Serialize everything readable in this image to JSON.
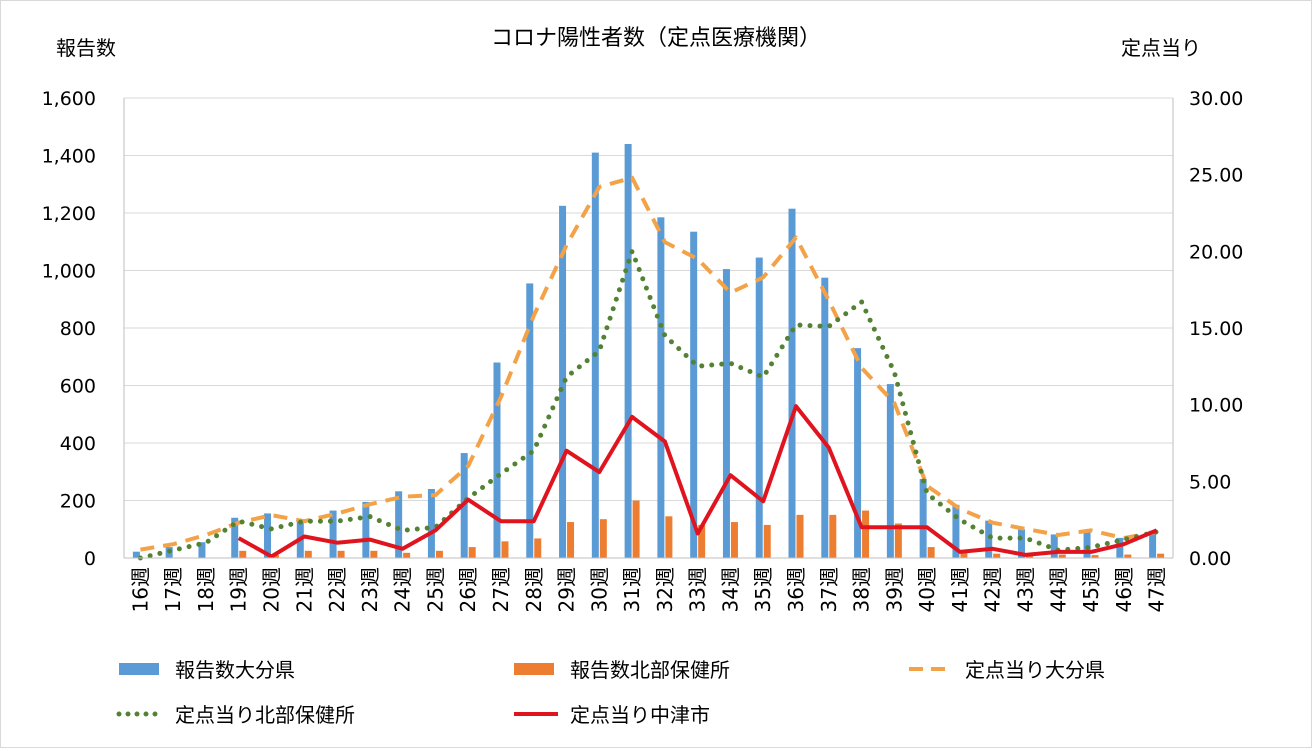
{
  "chart_data": {
    "type": "bar",
    "title": "コロナ陽性者数（定点医療機関）",
    "ylabel": "報告数",
    "y2label": "定点当り",
    "ylim": [
      0,
      1600
    ],
    "y2lim": [
      0,
      30
    ],
    "yticks": [
      "0",
      "200",
      "400",
      "600",
      "800",
      "1,000",
      "1,200",
      "1,400",
      "1,600"
    ],
    "y2ticks": [
      "0.00",
      "5.00",
      "10.00",
      "15.00",
      "20.00",
      "25.00",
      "30.00"
    ],
    "categories": [
      "16週",
      "17週",
      "18週",
      "19週",
      "20週",
      "21週",
      "22週",
      "23週",
      "24週",
      "25週",
      "26週",
      "27週",
      "28週",
      "29週",
      "30週",
      "31週",
      "32週",
      "33週",
      "34週",
      "35週",
      "36週",
      "37週",
      "38週",
      "39週",
      "40週",
      "41週",
      "42週",
      "43週",
      "44週",
      "45週",
      "46週",
      "47週"
    ],
    "grid": true,
    "legend_position": "bottom",
    "series": [
      {
        "name": "報告数大分県",
        "kind": "bar",
        "axis": "left",
        "color": "#5b9bd5",
        "values": [
          22,
          38,
          55,
          140,
          155,
          135,
          165,
          195,
          232,
          240,
          365,
          680,
          955,
          1225,
          1410,
          1440,
          1185,
          1135,
          1005,
          1045,
          1215,
          975,
          730,
          605,
          275,
          185,
          130,
          100,
          82,
          95,
          70,
          95
        ]
      },
      {
        "name": "報告数北部保健所",
        "kind": "bar",
        "axis": "left",
        "color": "#ed7d31",
        "values": [
          0,
          0,
          0,
          25,
          10,
          25,
          25,
          25,
          18,
          25,
          38,
          58,
          68,
          125,
          135,
          200,
          145,
          115,
          125,
          115,
          150,
          150,
          165,
          120,
          38,
          18,
          15,
          10,
          12,
          10,
          12,
          15
        ]
      },
      {
        "name": "定点当り大分県",
        "kind": "line",
        "axis": "right",
        "color": "#f4a248",
        "style": "dashed",
        "values": [
          0.55,
          0.9,
          1.5,
          2.3,
          2.8,
          2.4,
          2.9,
          3.5,
          4.0,
          4.1,
          6.0,
          10.5,
          15.8,
          20.4,
          24.2,
          24.8,
          20.6,
          19.5,
          17.3,
          18.3,
          20.9,
          16.8,
          12.4,
          10.1,
          4.7,
          3.2,
          2.3,
          1.9,
          1.5,
          1.8,
          1.3,
          1.7
        ]
      },
      {
        "name": "定点当り北部保健所",
        "kind": "line",
        "axis": "right",
        "color": "#548235",
        "style": "dotted",
        "values": [
          0.0,
          0.5,
          1.0,
          2.4,
          1.9,
          2.4,
          2.4,
          2.7,
          1.8,
          2.0,
          3.9,
          5.5,
          7.0,
          11.8,
          13.5,
          20.0,
          14.5,
          12.5,
          12.7,
          11.8,
          15.2,
          15.1,
          16.7,
          12.1,
          4.2,
          2.5,
          1.3,
          1.3,
          0.5,
          0.7,
          1.2,
          1.7
        ]
      },
      {
        "name": "定点当り中津市",
        "kind": "line",
        "axis": "right",
        "color": "#e0141e",
        "style": "solid",
        "values": [
          null,
          null,
          null,
          1.3,
          0.1,
          1.4,
          1.0,
          1.2,
          0.6,
          1.8,
          3.8,
          2.4,
          2.4,
          7.0,
          5.6,
          9.2,
          7.6,
          1.6,
          5.4,
          3.7,
          9.9,
          7.2,
          2.0,
          2.0,
          2.0,
          0.4,
          0.6,
          0.2,
          0.4,
          0.4,
          0.9,
          1.8
        ]
      }
    ]
  }
}
